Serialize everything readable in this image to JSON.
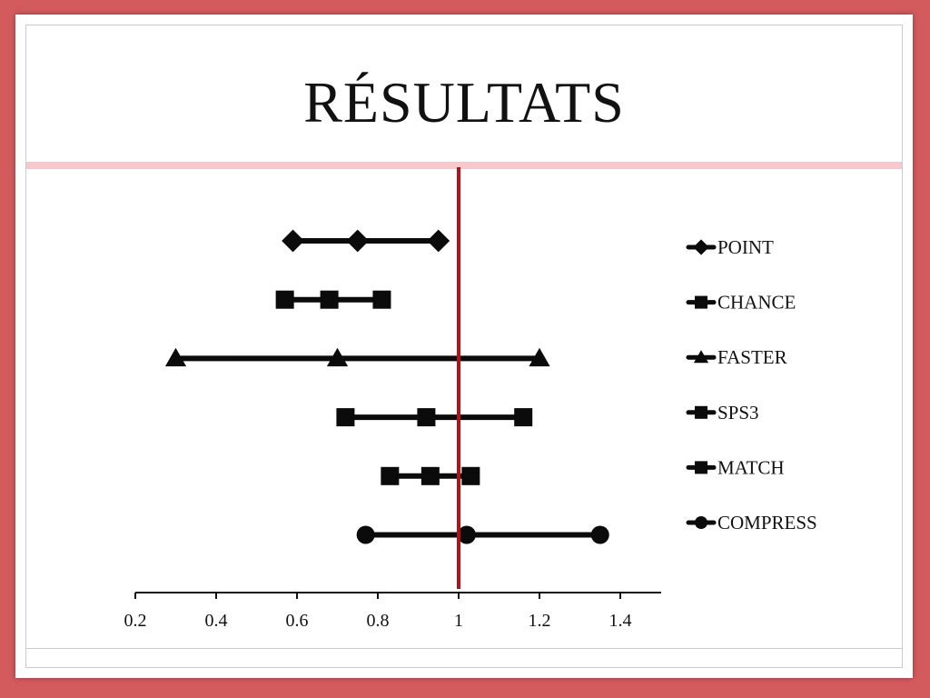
{
  "slide": {
    "title": "RÉSULTATS"
  },
  "chart_data": {
    "type": "scatter",
    "title": "RÉSULTATS",
    "xlabel": "",
    "ylabel": "",
    "xlim": [
      0.2,
      1.5
    ],
    "x_ticks": [
      "0.2",
      "0.4",
      "0.6",
      "0.8",
      "1",
      "1.2",
      "1.4"
    ],
    "reference_line": {
      "x": 1.0,
      "color": "#b11217"
    },
    "legend_position": "right",
    "series": [
      {
        "name": "POINT",
        "marker": "diamond",
        "values": [
          0.59,
          0.75,
          0.95
        ]
      },
      {
        "name": "CHANCE",
        "marker": "square",
        "values": [
          0.57,
          0.68,
          0.81
        ]
      },
      {
        "name": "FASTER",
        "marker": "triangle",
        "values": [
          0.3,
          0.7,
          1.2
        ]
      },
      {
        "name": "SPS3",
        "marker": "square",
        "values": [
          0.72,
          0.92,
          1.16
        ]
      },
      {
        "name": "MATCH",
        "marker": "square",
        "values": [
          0.83,
          0.93,
          1.03
        ]
      },
      {
        "name": "COMPRESS",
        "marker": "circle",
        "values": [
          0.77,
          1.02,
          1.35
        ]
      }
    ]
  }
}
